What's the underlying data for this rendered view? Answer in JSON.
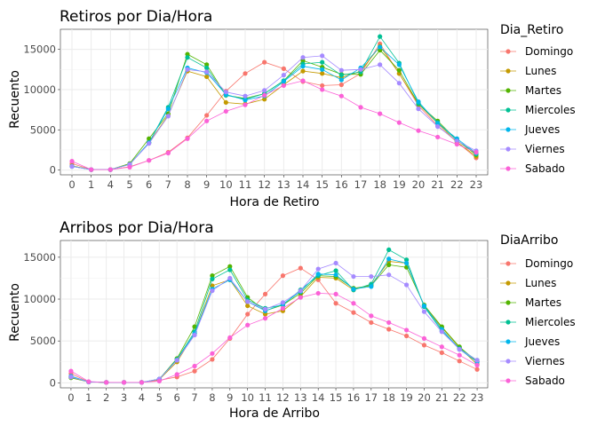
{
  "chart_data": [
    {
      "type": "line",
      "title": "Retiros por Dia/Hora",
      "xlabel": "Hora de Retiro",
      "ylabel": "Recuento",
      "legend_title": "Dia_Retiro",
      "legend_position": "right",
      "grid": true,
      "x": [
        "0",
        "1",
        "4",
        "5",
        "6",
        "7",
        "8",
        "9",
        "10",
        "11",
        "12",
        "13",
        "14",
        "15",
        "16",
        "17",
        "18",
        "19",
        "20",
        "21",
        "22",
        "23"
      ],
      "y_ticks": [
        0,
        5000,
        10000,
        15000
      ],
      "ylim": [
        -600,
        17500
      ],
      "series": [
        {
          "name": "Domingo",
          "color": "#F8766D",
          "values": [
            800,
            50,
            50,
            400,
            1200,
            2200,
            4000,
            6800,
            9800,
            12000,
            13400,
            12600,
            11000,
            10500,
            10600,
            12000,
            15700,
            12000,
            8000,
            5500,
            3500,
            1500
          ]
        },
        {
          "name": "Lunes",
          "color": "#C49A00",
          "values": [
            500,
            50,
            50,
            700,
            3400,
            6800,
            12300,
            11600,
            8400,
            8200,
            8800,
            10600,
            12300,
            12000,
            11500,
            12300,
            15400,
            12000,
            8200,
            5800,
            3500,
            1700
          ]
        },
        {
          "name": "Martes",
          "color": "#53B400",
          "values": [
            500,
            50,
            50,
            800,
            3900,
            7000,
            14400,
            13100,
            9300,
            8900,
            9500,
            11100,
            13600,
            12800,
            11900,
            11900,
            14900,
            12400,
            8200,
            6100,
            3700,
            1900
          ]
        },
        {
          "name": "Miercoles",
          "color": "#00C094",
          "values": [
            450,
            50,
            50,
            700,
            3400,
            7800,
            14000,
            12700,
            9300,
            8800,
            9500,
            11100,
            13200,
            13400,
            11800,
            12200,
            16600,
            13300,
            8300,
            5900,
            3700,
            2000
          ]
        },
        {
          "name": "Jueves",
          "color": "#00B6EB",
          "values": [
            450,
            50,
            50,
            700,
            3400,
            7600,
            12700,
            12100,
            9400,
            8700,
            9200,
            11000,
            12900,
            12500,
            11200,
            12700,
            15300,
            13100,
            8500,
            5800,
            3900,
            2100
          ]
        },
        {
          "name": "Viernes",
          "color": "#A58AFF",
          "values": [
            450,
            50,
            50,
            700,
            3300,
            6700,
            12500,
            12200,
            9700,
            9200,
            9900,
            11800,
            14000,
            14200,
            12400,
            12500,
            13100,
            10800,
            7600,
            5400,
            3600,
            2400
          ]
        },
        {
          "name": "Sabado",
          "color": "#FB61D7",
          "values": [
            1100,
            50,
            50,
            350,
            1200,
            2100,
            3900,
            6100,
            7300,
            8100,
            9300,
            10500,
            11100,
            10000,
            9200,
            7800,
            7000,
            5900,
            4900,
            4100,
            3200,
            2200
          ]
        }
      ]
    },
    {
      "type": "line",
      "title": "Arribos por Dia/Hora",
      "xlabel": "Hora de Arribo",
      "ylabel": "Recuento",
      "legend_title": "DiaArribo",
      "legend_position": "right",
      "grid": true,
      "x": [
        "0",
        "1",
        "2",
        "3",
        "4",
        "5",
        "6",
        "7",
        "8",
        "9",
        "10",
        "11",
        "12",
        "13",
        "14",
        "15",
        "16",
        "17",
        "18",
        "19",
        "20",
        "21",
        "22",
        "23"
      ],
      "y_ticks": [
        0,
        5000,
        10000,
        15000
      ],
      "ylim": [
        -600,
        17000
      ],
      "series": [
        {
          "name": "Domingo",
          "color": "#F8766D",
          "values": [
            1100,
            100,
            50,
            50,
            50,
            300,
            700,
            1400,
            2800,
            5300,
            8200,
            10600,
            12800,
            13700,
            12300,
            9500,
            8400,
            7200,
            6400,
            5600,
            4500,
            3600,
            2600,
            1600
          ]
        },
        {
          "name": "Lunes",
          "color": "#C49A00",
          "values": [
            700,
            100,
            50,
            50,
            50,
            400,
            2500,
            5900,
            11600,
            12300,
            9200,
            8200,
            8600,
            10300,
            12600,
            12500,
            11100,
            11700,
            14500,
            14300,
            9200,
            6600,
            4200,
            2200
          ]
        },
        {
          "name": "Martes",
          "color": "#53B400",
          "values": [
            600,
            100,
            50,
            50,
            50,
            450,
            2900,
            6700,
            12800,
            13900,
            10200,
            8600,
            9300,
            10700,
            12800,
            12700,
            11300,
            11600,
            14100,
            13800,
            9300,
            6700,
            4300,
            2500
          ]
        },
        {
          "name": "Miercoles",
          "color": "#00C094",
          "values": [
            700,
            100,
            50,
            50,
            50,
            450,
            2800,
            6100,
            12400,
            13500,
            9900,
            8900,
            9300,
            11100,
            12800,
            13400,
            11100,
            11800,
            15900,
            14700,
            9100,
            6200,
            4100,
            2700
          ]
        },
        {
          "name": "Jueves",
          "color": "#00B6EB",
          "values": [
            800,
            100,
            50,
            50,
            50,
            450,
            2700,
            5900,
            11200,
            12300,
            9700,
            8600,
            9400,
            10900,
            13000,
            12900,
            11200,
            11500,
            14800,
            14300,
            9200,
            6400,
            4000,
            2500
          ]
        },
        {
          "name": "Viernes",
          "color": "#A58AFF",
          "values": [
            700,
            100,
            50,
            50,
            50,
            450,
            2700,
            5700,
            11000,
            12500,
            9700,
            8800,
            9600,
            11000,
            13600,
            14300,
            12700,
            12700,
            12900,
            11700,
            8500,
            6100,
            4000,
            2700
          ]
        },
        {
          "name": "Sabado",
          "color": "#FB61D7",
          "values": [
            1400,
            150,
            50,
            50,
            50,
            200,
            1000,
            2000,
            3500,
            5400,
            6900,
            7700,
            8900,
            10200,
            10700,
            10600,
            9500,
            8000,
            7200,
            6300,
            5300,
            4300,
            3300,
            2100
          ]
        }
      ]
    }
  ]
}
